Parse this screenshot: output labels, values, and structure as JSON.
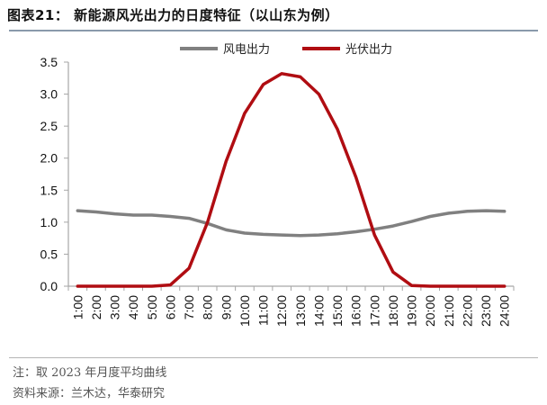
{
  "header": {
    "title": "图表21： 新能源风光出力的日度特征（以山东为例）"
  },
  "legend": {
    "items": [
      {
        "label": "风电出力",
        "color": "#808080"
      },
      {
        "label": "光伏出力",
        "color": "#b00d12"
      }
    ]
  },
  "footer": {
    "note": "注：取 2023 年月度平均曲线",
    "source": "资料来源：兰木达，华泰研究"
  },
  "chart_data": {
    "type": "line",
    "title": "新能源风光出力的日度特征（以山东为例）",
    "xlabel": "",
    "ylabel": "",
    "ylim": [
      0,
      3.5
    ],
    "yticks": [
      "0.0",
      "0.5",
      "1.0",
      "1.5",
      "2.0",
      "2.5",
      "3.0",
      "3.5"
    ],
    "grid": false,
    "legend_position": "top",
    "categories": [
      "1:00",
      "2:00",
      "3:00",
      "4:00",
      "5:00",
      "6:00",
      "7:00",
      "8:00",
      "9:00",
      "10:00",
      "11:00",
      "12:00",
      "13:00",
      "14:00",
      "15:00",
      "16:00",
      "17:00",
      "18:00",
      "19:00",
      "20:00",
      "21:00",
      "22:00",
      "23:00",
      "24:00"
    ],
    "series": [
      {
        "name": "风电出力",
        "color": "#808080",
        "values": [
          1.18,
          1.16,
          1.13,
          1.11,
          1.11,
          1.09,
          1.06,
          0.98,
          0.88,
          0.83,
          0.81,
          0.8,
          0.79,
          0.8,
          0.82,
          0.85,
          0.89,
          0.94,
          1.01,
          1.09,
          1.14,
          1.17,
          1.18,
          1.17
        ]
      },
      {
        "name": "光伏出力",
        "color": "#b00d12",
        "values": [
          0.0,
          0.0,
          0.0,
          0.0,
          0.0,
          0.02,
          0.28,
          1.0,
          1.95,
          2.7,
          3.15,
          3.32,
          3.27,
          3.0,
          2.45,
          1.7,
          0.8,
          0.22,
          0.01,
          0.0,
          0.0,
          0.0,
          0.0,
          0.0
        ]
      }
    ]
  }
}
